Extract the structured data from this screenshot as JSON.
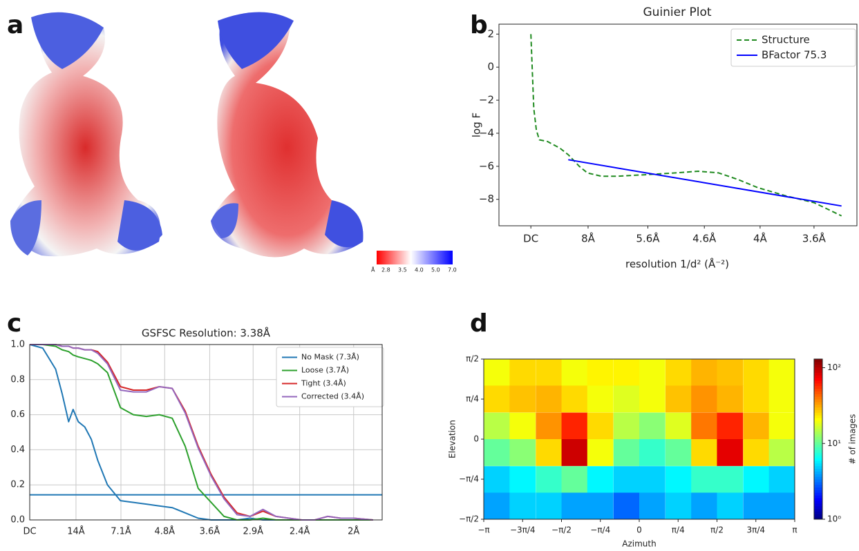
{
  "panel_labels": [
    "a",
    "b",
    "c",
    "d"
  ],
  "map_colorbar": {
    "unit": "Å",
    "ticks": [
      2.8,
      3.5,
      {
        "value": 4.0,
        "label": "4.0"
      },
      {
        "value": 5.0,
        "label": "5.0"
      },
      {
        "value": 7.0,
        "label": "7.0"
      }
    ]
  },
  "chart_data": [
    {
      "type": "line",
      "title": "Guinier Plot",
      "xlabel": "resolution 1/d² (Å⁻²)",
      "ylabel": "log F",
      "xlim": [
        -0.0087,
        0.0889
      ],
      "ylim": [
        -9.6,
        2.6
      ],
      "xticks": [
        {
          "value": 0,
          "label": "DC"
        },
        {
          "value": 0.0156,
          "label": "8Å"
        },
        {
          "value": 0.0319,
          "label": "5.6Å"
        },
        {
          "value": 0.0473,
          "label": "4.6Å"
        },
        {
          "value": 0.0625,
          "label": "4Å"
        },
        {
          "value": 0.0772,
          "label": "3.6Å"
        }
      ],
      "yticks": [
        2,
        0,
        {
          "value": -2,
          "label": "−2"
        },
        {
          "value": -4,
          "label": "−4"
        },
        {
          "value": -6,
          "label": "−6"
        },
        {
          "value": -8,
          "label": "−8"
        }
      ],
      "grid": false,
      "legend": "upper right",
      "series": [
        {
          "name": "Structure",
          "color": "#1f8a1f",
          "dash": true,
          "x": [
            0,
            0.0008,
            0.0015,
            0.0023,
            0.0045,
            0.0079,
            0.0102,
            0.0132,
            0.0154,
            0.0192,
            0.0237,
            0.032,
            0.0395,
            0.0456,
            0.0512,
            0.0565,
            0.062,
            0.0697,
            0.0772,
            0.0847
          ],
          "values": [
            2,
            -2.5,
            -3.8,
            -4.4,
            -4.5,
            -4.9,
            -5.3,
            -6.0,
            -6.4,
            -6.6,
            -6.6,
            -6.5,
            -6.4,
            -6.3,
            -6.4,
            -6.8,
            -7.3,
            -7.8,
            -8.2,
            -9.0
          ]
        },
        {
          "name": "BFactor 75.3",
          "color": "#0000ff",
          "dash": false,
          "x": [
            0.0102,
            0.0847
          ],
          "values": [
            -5.6,
            -8.4
          ]
        }
      ]
    },
    {
      "type": "line",
      "title": "GSFSC Resolution: 3.38Å",
      "xlim": [
        0,
        0.544
      ],
      "ylim": [
        0,
        1
      ],
      "xticks": [
        {
          "value": 0,
          "label": "DC"
        },
        {
          "value": 0.0714,
          "label": "14Å"
        },
        {
          "value": 0.1408,
          "label": "7.1Å"
        },
        {
          "value": 0.2083,
          "label": "4.8Å"
        },
        {
          "value": 0.2778,
          "label": "3.6Å"
        },
        {
          "value": 0.3448,
          "label": "2.9Å"
        },
        {
          "value": 0.4167,
          "label": "2.4Å"
        },
        {
          "value": 0.5,
          "label": "2Å"
        }
      ],
      "yticks": [
        {
          "value": 0,
          "label": "0.0"
        },
        {
          "value": 0.2,
          "label": "0.2"
        },
        {
          "value": 0.4,
          "label": "0.4"
        },
        {
          "value": 0.6,
          "label": "0.6"
        },
        {
          "value": 0.8,
          "label": "0.8"
        },
        {
          "value": 1,
          "label": "1.0"
        }
      ],
      "grid": true,
      "legend": "upper right",
      "hlines": [
        {
          "value": 0.143,
          "color": "#1f77b4"
        }
      ],
      "x": [
        0,
        0.02,
        0.04,
        0.05,
        0.06,
        0.067,
        0.075,
        0.085,
        0.095,
        0.105,
        0.12,
        0.14,
        0.16,
        0.18,
        0.2,
        0.22,
        0.24,
        0.26,
        0.28,
        0.3,
        0.32,
        0.34,
        0.36,
        0.38,
        0.4,
        0.42,
        0.44,
        0.46,
        0.48,
        0.5,
        0.53
      ],
      "series": [
        {
          "name": "No Mask (7.3Å)",
          "color": "#1f77b4",
          "values": [
            1.0,
            0.98,
            0.86,
            0.72,
            0.56,
            0.63,
            0.56,
            0.53,
            0.46,
            0.34,
            0.2,
            0.11,
            0.1,
            0.09,
            0.08,
            0.07,
            0.04,
            0.01,
            0,
            0,
            0,
            0.01,
            0,
            0,
            0,
            0,
            0,
            0,
            0,
            0,
            0
          ]
        },
        {
          "name": "Loose (3.7Å)",
          "color": "#2ca02c",
          "values": [
            1.0,
            1.0,
            0.99,
            0.97,
            0.96,
            0.94,
            0.93,
            0.92,
            0.91,
            0.89,
            0.84,
            0.64,
            0.6,
            0.59,
            0.6,
            0.58,
            0.42,
            0.18,
            0.1,
            0.02,
            0,
            0,
            0.01,
            0,
            0,
            0,
            0,
            0,
            0,
            0,
            0
          ]
        },
        {
          "name": "Tight (3.4Å)",
          "color": "#d62728",
          "values": [
            1.0,
            1.0,
            1.0,
            0.99,
            0.99,
            0.98,
            0.98,
            0.97,
            0.97,
            0.96,
            0.9,
            0.76,
            0.74,
            0.74,
            0.76,
            0.75,
            0.62,
            0.42,
            0.26,
            0.13,
            0.04,
            0.02,
            0.05,
            0.02,
            0.01,
            0,
            0,
            0.02,
            0.01,
            0.01,
            0
          ]
        },
        {
          "name": "Corrected (3.4Å)",
          "color": "#9467bd",
          "values": [
            1.0,
            1.0,
            1.0,
            0.99,
            0.99,
            0.98,
            0.98,
            0.97,
            0.97,
            0.95,
            0.89,
            0.74,
            0.73,
            0.73,
            0.76,
            0.75,
            0.61,
            0.41,
            0.25,
            0.12,
            0.03,
            0.02,
            0.06,
            0.02,
            0.01,
            0,
            0,
            0.02,
            0.01,
            0.01,
            0
          ]
        }
      ]
    },
    {
      "type": "heatmap",
      "xlabel": "Azimuth",
      "ylabel": "Elevation",
      "zlabel": "# of images",
      "colormap": "jet",
      "zlog": true,
      "xlim": [
        -3.1416,
        3.1416
      ],
      "ylim": [
        -1.5708,
        1.5708
      ],
      "zlim": [
        1,
        130
      ],
      "xticks": [
        {
          "value": -3.1416,
          "label": "−π"
        },
        {
          "value": -2.3562,
          "label": "−3π/4"
        },
        {
          "value": -1.5708,
          "label": "−π/2"
        },
        {
          "value": -0.7854,
          "label": "−π/4"
        },
        0,
        {
          "value": 0.7854,
          "label": "π/4"
        },
        {
          "value": 1.5708,
          "label": "π/2"
        },
        {
          "value": 2.3562,
          "label": "3π/4"
        },
        {
          "value": 3.1416,
          "label": "π"
        }
      ],
      "yticks": [
        {
          "value": -1.5708,
          "label": "−π/2"
        },
        {
          "value": -0.7854,
          "label": "−π/4"
        },
        0,
        {
          "value": 0.7854,
          "label": "π/4"
        },
        {
          "value": 1.5708,
          "label": "π/2"
        }
      ],
      "zticks": [
        {
          "value": 1,
          "label": "10⁰"
        },
        {
          "value": 10,
          "label": "10¹"
        },
        {
          "value": 100,
          "label": "10²"
        }
      ],
      "x": [
        -2.88,
        -2.36,
        -1.83,
        -1.31,
        -0.79,
        -0.26,
        0.26,
        0.79,
        1.31,
        1.83,
        2.36,
        2.88
      ],
      "y": [
        1.31,
        0.79,
        0.26,
        -0.26,
        -0.79,
        -1.31
      ],
      "z": [
        [
          20,
          25,
          25,
          20,
          22,
          22,
          20,
          25,
          30,
          28,
          25,
          20
        ],
        [
          25,
          28,
          30,
          25,
          20,
          18,
          20,
          28,
          35,
          30,
          25,
          20
        ],
        [
          15,
          20,
          35,
          60,
          25,
          15,
          12,
          18,
          40,
          60,
          30,
          20
        ],
        [
          10,
          12,
          25,
          90,
          20,
          10,
          8,
          10,
          25,
          80,
          25,
          15
        ],
        [
          5,
          6,
          8,
          10,
          6,
          5,
          5,
          6,
          8,
          8,
          6,
          5
        ],
        [
          4,
          5,
          5,
          4,
          4,
          3,
          4,
          5,
          4,
          5,
          4,
          4
        ]
      ]
    }
  ]
}
